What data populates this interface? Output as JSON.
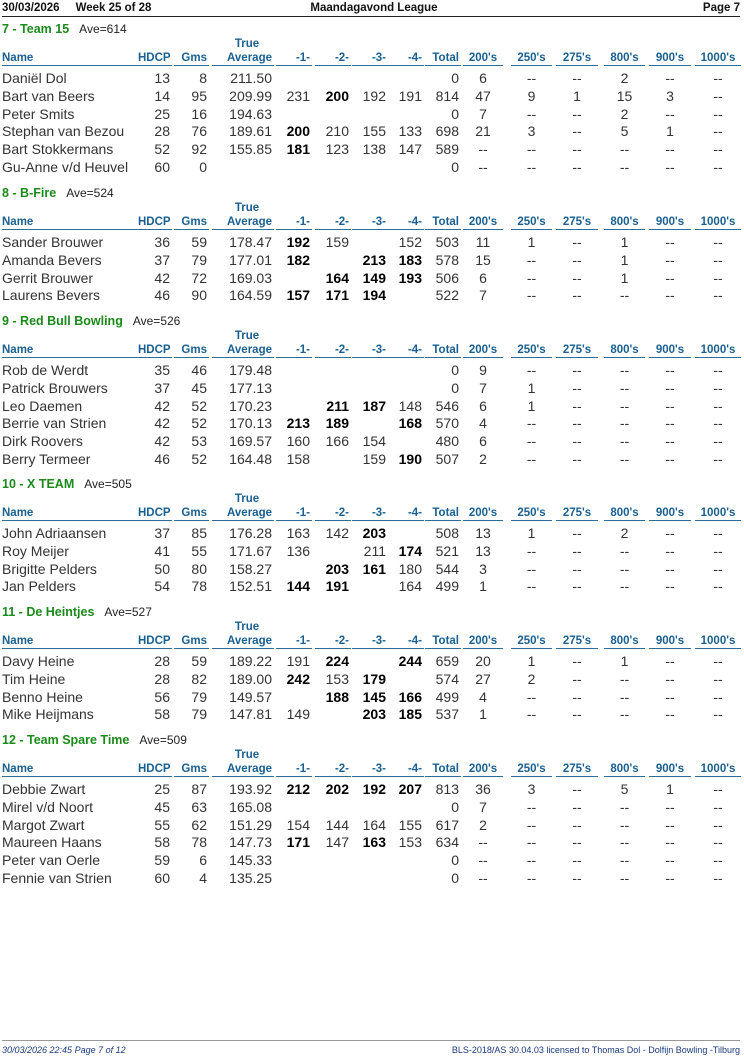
{
  "header": {
    "date": "30/03/2026",
    "week": "Week 25 of 28",
    "league": "Maandagavond League",
    "page": "Page 7"
  },
  "columns": {
    "true": "True",
    "name": "Name",
    "hdcp": "HDCP",
    "gms": "Gms",
    "average": "Average",
    "g1": "-1-",
    "g2": "-2-",
    "g3": "-3-",
    "g4": "-4-",
    "total": "Total",
    "c200": "200's",
    "c250": "250's",
    "c275": "275's",
    "c800": "800's",
    "c900": "900's",
    "c1000": "1000's"
  },
  "teams": [
    {
      "title": "7 - Team 15",
      "ave": "Ave=614",
      "players": [
        {
          "name": "Daniël Dol",
          "hdcp": "13",
          "gms": "8",
          "avg": "211.50",
          "g": [
            "",
            "",
            "",
            ""
          ],
          "bold": [
            false,
            false,
            false,
            false
          ],
          "total": "0",
          "c200": "6",
          "c250": "--",
          "c275": "--",
          "c800": "2",
          "c900": "--",
          "c1000": "--"
        },
        {
          "name": "Bart van Beers",
          "hdcp": "14",
          "gms": "95",
          "avg": "209.99",
          "g": [
            "231",
            "200",
            "192",
            "191"
          ],
          "bold": [
            false,
            true,
            false,
            false
          ],
          "total": "814",
          "c200": "47",
          "c250": "9",
          "c275": "1",
          "c800": "15",
          "c900": "3",
          "c1000": "--"
        },
        {
          "name": "Peter Smits",
          "hdcp": "25",
          "gms": "16",
          "avg": "194.63",
          "g": [
            "",
            "",
            "",
            ""
          ],
          "bold": [
            false,
            false,
            false,
            false
          ],
          "total": "0",
          "c200": "7",
          "c250": "--",
          "c275": "--",
          "c800": "2",
          "c900": "--",
          "c1000": "--"
        },
        {
          "name": "Stephan van Bezou",
          "hdcp": "28",
          "gms": "76",
          "avg": "189.61",
          "g": [
            "200",
            "210",
            "155",
            "133"
          ],
          "bold": [
            true,
            false,
            false,
            false
          ],
          "total": "698",
          "c200": "21",
          "c250": "3",
          "c275": "--",
          "c800": "5",
          "c900": "1",
          "c1000": "--"
        },
        {
          "name": "Bart Stokkermans",
          "hdcp": "52",
          "gms": "92",
          "avg": "155.85",
          "g": [
            "181",
            "123",
            "138",
            "147"
          ],
          "bold": [
            true,
            false,
            false,
            false
          ],
          "total": "589",
          "c200": "--",
          "c250": "--",
          "c275": "--",
          "c800": "--",
          "c900": "--",
          "c1000": "--"
        },
        {
          "name": "Gu-Anne v/d Heuvel",
          "hdcp": "60",
          "gms": "0",
          "avg": "",
          "g": [
            "",
            "",
            "",
            ""
          ],
          "bold": [
            false,
            false,
            false,
            false
          ],
          "total": "0",
          "c200": "--",
          "c250": "--",
          "c275": "--",
          "c800": "--",
          "c900": "--",
          "c1000": "--"
        }
      ]
    },
    {
      "title": "8 - B-Fire",
      "ave": "Ave=524",
      "players": [
        {
          "name": "Sander Brouwer",
          "hdcp": "36",
          "gms": "59",
          "avg": "178.47",
          "g": [
            "192",
            "159",
            "",
            "152"
          ],
          "bold": [
            true,
            false,
            false,
            false
          ],
          "total": "503",
          "c200": "11",
          "c250": "1",
          "c275": "--",
          "c800": "1",
          "c900": "--",
          "c1000": "--"
        },
        {
          "name": "Amanda Bevers",
          "hdcp": "37",
          "gms": "79",
          "avg": "177.01",
          "g": [
            "182",
            "",
            "213",
            "183"
          ],
          "bold": [
            true,
            false,
            true,
            true
          ],
          "total": "578",
          "c200": "15",
          "c250": "--",
          "c275": "--",
          "c800": "1",
          "c900": "--",
          "c1000": "--"
        },
        {
          "name": "Gerrit Brouwer",
          "hdcp": "42",
          "gms": "72",
          "avg": "169.03",
          "g": [
            "",
            "164",
            "149",
            "193"
          ],
          "bold": [
            false,
            true,
            true,
            true
          ],
          "total": "506",
          "c200": "6",
          "c250": "--",
          "c275": "--",
          "c800": "1",
          "c900": "--",
          "c1000": "--"
        },
        {
          "name": "Laurens Bevers",
          "hdcp": "46",
          "gms": "90",
          "avg": "164.59",
          "g": [
            "157",
            "171",
            "194",
            ""
          ],
          "bold": [
            true,
            true,
            true,
            false
          ],
          "total": "522",
          "c200": "7",
          "c250": "--",
          "c275": "--",
          "c800": "--",
          "c900": "--",
          "c1000": "--"
        }
      ]
    },
    {
      "title": "9 - Red Bull Bowling",
      "ave": "Ave=526",
      "players": [
        {
          "name": "Rob de Werdt",
          "hdcp": "35",
          "gms": "46",
          "avg": "179.48",
          "g": [
            "",
            "",
            "",
            ""
          ],
          "bold": [
            false,
            false,
            false,
            false
          ],
          "total": "0",
          "c200": "9",
          "c250": "--",
          "c275": "--",
          "c800": "--",
          "c900": "--",
          "c1000": "--"
        },
        {
          "name": "Patrick Brouwers",
          "hdcp": "37",
          "gms": "45",
          "avg": "177.13",
          "g": [
            "",
            "",
            "",
            ""
          ],
          "bold": [
            false,
            false,
            false,
            false
          ],
          "total": "0",
          "c200": "7",
          "c250": "1",
          "c275": "--",
          "c800": "--",
          "c900": "--",
          "c1000": "--"
        },
        {
          "name": "Leo Daemen",
          "hdcp": "42",
          "gms": "52",
          "avg": "170.23",
          "g": [
            "",
            "211",
            "187",
            "148"
          ],
          "bold": [
            false,
            true,
            true,
            false
          ],
          "total": "546",
          "c200": "6",
          "c250": "1",
          "c275": "--",
          "c800": "--",
          "c900": "--",
          "c1000": "--"
        },
        {
          "name": "Berrie van Strien",
          "hdcp": "42",
          "gms": "52",
          "avg": "170.13",
          "g": [
            "213",
            "189",
            "",
            "168"
          ],
          "bold": [
            true,
            true,
            false,
            true
          ],
          "total": "570",
          "c200": "4",
          "c250": "--",
          "c275": "--",
          "c800": "--",
          "c900": "--",
          "c1000": "--"
        },
        {
          "name": "Dirk Roovers",
          "hdcp": "42",
          "gms": "53",
          "avg": "169.57",
          "g": [
            "160",
            "166",
            "154",
            ""
          ],
          "bold": [
            false,
            false,
            false,
            false
          ],
          "total": "480",
          "c200": "6",
          "c250": "--",
          "c275": "--",
          "c800": "--",
          "c900": "--",
          "c1000": "--"
        },
        {
          "name": "Berry Termeer",
          "hdcp": "46",
          "gms": "52",
          "avg": "164.48",
          "g": [
            "158",
            "",
            "159",
            "190"
          ],
          "bold": [
            false,
            false,
            false,
            true
          ],
          "total": "507",
          "c200": "2",
          "c250": "--",
          "c275": "--",
          "c800": "--",
          "c900": "--",
          "c1000": "--"
        }
      ]
    },
    {
      "title": "10 - X TEAM",
      "ave": "Ave=505",
      "players": [
        {
          "name": "John Adriaansen",
          "hdcp": "37",
          "gms": "85",
          "avg": "176.28",
          "g": [
            "163",
            "142",
            "203",
            ""
          ],
          "bold": [
            false,
            false,
            true,
            false
          ],
          "total": "508",
          "c200": "13",
          "c250": "1",
          "c275": "--",
          "c800": "2",
          "c900": "--",
          "c1000": "--"
        },
        {
          "name": "Roy Meijer",
          "hdcp": "41",
          "gms": "55",
          "avg": "171.67",
          "g": [
            "136",
            "",
            "211",
            "174"
          ],
          "bold": [
            false,
            false,
            false,
            true
          ],
          "total": "521",
          "c200": "13",
          "c250": "--",
          "c275": "--",
          "c800": "--",
          "c900": "--",
          "c1000": "--"
        },
        {
          "name": "Brigitte Pelders",
          "hdcp": "50",
          "gms": "80",
          "avg": "158.27",
          "g": [
            "",
            "203",
            "161",
            "180"
          ],
          "bold": [
            false,
            true,
            true,
            false
          ],
          "total": "544",
          "c200": "3",
          "c250": "--",
          "c275": "--",
          "c800": "--",
          "c900": "--",
          "c1000": "--"
        },
        {
          "name": "Jan Pelders",
          "hdcp": "54",
          "gms": "78",
          "avg": "152.51",
          "g": [
            "144",
            "191",
            "",
            "164"
          ],
          "bold": [
            true,
            true,
            false,
            false
          ],
          "total": "499",
          "c200": "1",
          "c250": "--",
          "c275": "--",
          "c800": "--",
          "c900": "--",
          "c1000": "--"
        }
      ]
    },
    {
      "title": "11 - De Heintjes",
      "ave": "Ave=527",
      "players": [
        {
          "name": "Davy Heine",
          "hdcp": "28",
          "gms": "59",
          "avg": "189.22",
          "g": [
            "191",
            "224",
            "",
            "244"
          ],
          "bold": [
            false,
            true,
            false,
            true
          ],
          "total": "659",
          "c200": "20",
          "c250": "1",
          "c275": "--",
          "c800": "1",
          "c900": "--",
          "c1000": "--"
        },
        {
          "name": "Tim Heine",
          "hdcp": "28",
          "gms": "82",
          "avg": "189.00",
          "g": [
            "242",
            "153",
            "179",
            ""
          ],
          "bold": [
            true,
            false,
            true,
            false
          ],
          "total": "574",
          "c200": "27",
          "c250": "2",
          "c275": "--",
          "c800": "--",
          "c900": "--",
          "c1000": "--"
        },
        {
          "name": "Benno Heine",
          "hdcp": "56",
          "gms": "79",
          "avg": "149.57",
          "g": [
            "",
            "188",
            "145",
            "166"
          ],
          "bold": [
            false,
            true,
            true,
            true
          ],
          "total": "499",
          "c200": "4",
          "c250": "--",
          "c275": "--",
          "c800": "--",
          "c900": "--",
          "c1000": "--"
        },
        {
          "name": "Mike Heijmans",
          "hdcp": "58",
          "gms": "79",
          "avg": "147.81",
          "g": [
            "149",
            "",
            "203",
            "185"
          ],
          "bold": [
            false,
            false,
            true,
            true
          ],
          "total": "537",
          "c200": "1",
          "c250": "--",
          "c275": "--",
          "c800": "--",
          "c900": "--",
          "c1000": "--"
        }
      ]
    },
    {
      "title": "12 - Team Spare Time",
      "ave": "Ave=509",
      "players": [
        {
          "name": "Debbie Zwart",
          "hdcp": "25",
          "gms": "87",
          "avg": "193.92",
          "g": [
            "212",
            "202",
            "192",
            "207"
          ],
          "bold": [
            true,
            true,
            true,
            true
          ],
          "total": "813",
          "c200": "36",
          "c250": "3",
          "c275": "--",
          "c800": "5",
          "c900": "1",
          "c1000": "--"
        },
        {
          "name": "Mirel v/d Noort",
          "hdcp": "45",
          "gms": "63",
          "avg": "165.08",
          "g": [
            "",
            "",
            "",
            ""
          ],
          "bold": [
            false,
            false,
            false,
            false
          ],
          "total": "0",
          "c200": "7",
          "c250": "--",
          "c275": "--",
          "c800": "--",
          "c900": "--",
          "c1000": "--"
        },
        {
          "name": "Margot Zwart",
          "hdcp": "55",
          "gms": "62",
          "avg": "151.29",
          "g": [
            "154",
            "144",
            "164",
            "155"
          ],
          "bold": [
            false,
            false,
            false,
            false
          ],
          "total": "617",
          "c200": "2",
          "c250": "--",
          "c275": "--",
          "c800": "--",
          "c900": "--",
          "c1000": "--"
        },
        {
          "name": "Maureen Haans",
          "hdcp": "58",
          "gms": "78",
          "avg": "147.73",
          "g": [
            "171",
            "147",
            "163",
            "153"
          ],
          "bold": [
            true,
            false,
            true,
            false
          ],
          "total": "634",
          "c200": "--",
          "c250": "--",
          "c275": "--",
          "c800": "--",
          "c900": "--",
          "c1000": "--"
        },
        {
          "name": "Peter van Oerle",
          "hdcp": "59",
          "gms": "6",
          "avg": "145.33",
          "g": [
            "",
            "",
            "",
            ""
          ],
          "bold": [
            false,
            false,
            false,
            false
          ],
          "total": "0",
          "c200": "--",
          "c250": "--",
          "c275": "--",
          "c800": "--",
          "c900": "--",
          "c1000": "--"
        },
        {
          "name": "Fennie van Strien",
          "hdcp": "60",
          "gms": "4",
          "avg": "135.25",
          "g": [
            "",
            "",
            "",
            ""
          ],
          "bold": [
            false,
            false,
            false,
            false
          ],
          "total": "0",
          "c200": "--",
          "c250": "--",
          "c275": "--",
          "c800": "--",
          "c900": "--",
          "c1000": "--"
        }
      ]
    }
  ],
  "footer": {
    "left": "30/03/2026  22:45  Page 7 of 12",
    "right": "BLS-2018/AS 30.04.03 licensed to Thomas Dol - Dolfijn Bowling -Tilburg"
  }
}
